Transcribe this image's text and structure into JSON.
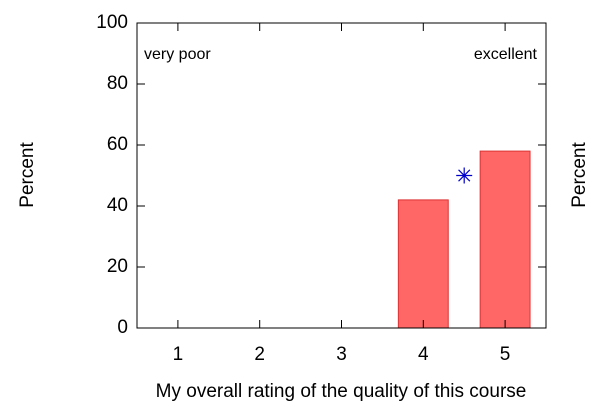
{
  "chart_data": {
    "type": "bar",
    "x": [
      1,
      2,
      3,
      4,
      5
    ],
    "values": [
      0,
      0,
      0,
      42,
      58
    ],
    "color": "#ff6666",
    "edgecolor": "#dd3333",
    "xlim": [
      0.5,
      5.5
    ],
    "xticks": [
      1,
      2,
      3,
      4,
      5
    ],
    "ylim": [
      0,
      100
    ],
    "yticks": [
      0,
      20,
      40,
      60,
      80,
      100
    ],
    "xlabel": "My overall rating of the quality of this course",
    "ylabel": "Percent",
    "y2label": "Percent",
    "annotations": [
      "very poor",
      "excellent"
    ],
    "points": {
      "color": "#0000cc",
      "x": [
        4.5
      ],
      "y": [
        50
      ]
    }
  }
}
